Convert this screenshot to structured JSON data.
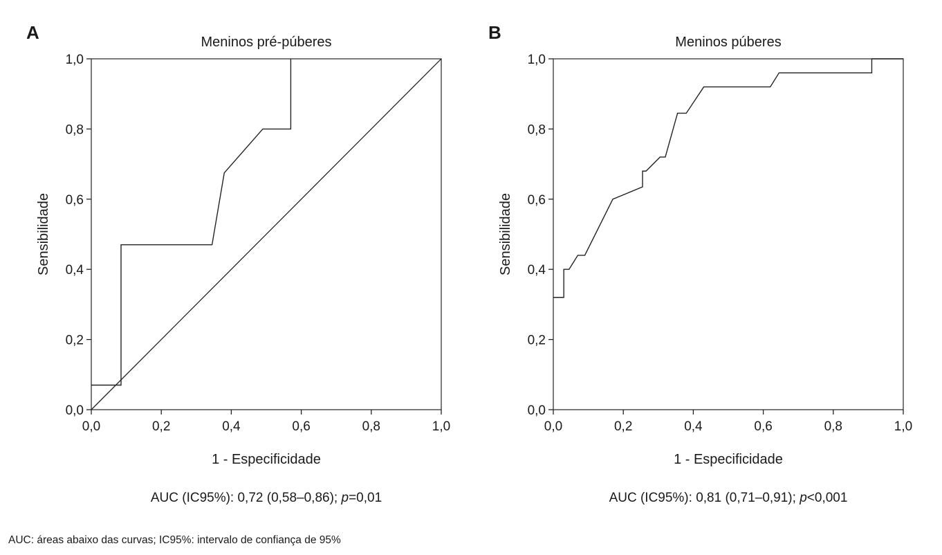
{
  "footnote": "AUC: áreas abaixo das curvas; IC95%: intervalo de confiança de 95%",
  "chart_data": [
    {
      "type": "line",
      "panel": "A",
      "title": "Meninos pré-púberes",
      "xlabel": "1 - Especificidade",
      "ylabel": "Sensibilidade",
      "xlim": [
        0,
        1
      ],
      "ylim": [
        0,
        1
      ],
      "x_ticks": [
        "0,0",
        "0,2",
        "0,4",
        "0,6",
        "0,8",
        "1,0"
      ],
      "y_ticks": [
        "0,0",
        "0,2",
        "0,4",
        "0,6",
        "0,8",
        "1,0"
      ],
      "auc_prefix": "AUC (IC95%): 0,72 (0,58–0,86); ",
      "auc_p_label": "p",
      "auc_p_value": "=0,01",
      "reference_line": true,
      "series": [
        {
          "x": [
            0.0,
            0.085,
            0.085,
            0.345,
            0.38,
            0.49,
            0.57,
            0.57
          ],
          "y": [
            0.07,
            0.07,
            0.47,
            0.47,
            0.675,
            0.8,
            0.8,
            1.0
          ]
        }
      ]
    },
    {
      "type": "line",
      "panel": "B",
      "title": "Meninos púberes",
      "xlabel": "1 - Especificidade",
      "ylabel": "Sensibilidade",
      "xlim": [
        0,
        1
      ],
      "ylim": [
        0,
        1
      ],
      "x_ticks": [
        "0,0",
        "0,2",
        "0,4",
        "0,6",
        "0,8",
        "1,0"
      ],
      "y_ticks": [
        "0,0",
        "0,2",
        "0,4",
        "0,6",
        "0,8",
        "1,0"
      ],
      "auc_prefix": "AUC (IC95%): 0,81 (0,71–0,91); ",
      "auc_p_label": "p",
      "auc_p_value": "<0,001",
      "reference_line": false,
      "series": [
        {
          "x": [
            0.0,
            0.03,
            0.03,
            0.045,
            0.07,
            0.09,
            0.17,
            0.255,
            0.255,
            0.265,
            0.305,
            0.32,
            0.355,
            0.38,
            0.43,
            0.62,
            0.645,
            0.91,
            0.91,
            1.0
          ],
          "y": [
            0.32,
            0.32,
            0.4,
            0.4,
            0.44,
            0.44,
            0.6,
            0.635,
            0.68,
            0.68,
            0.72,
            0.72,
            0.845,
            0.845,
            0.92,
            0.92,
            0.96,
            0.96,
            1.0,
            1.0
          ]
        }
      ]
    }
  ]
}
